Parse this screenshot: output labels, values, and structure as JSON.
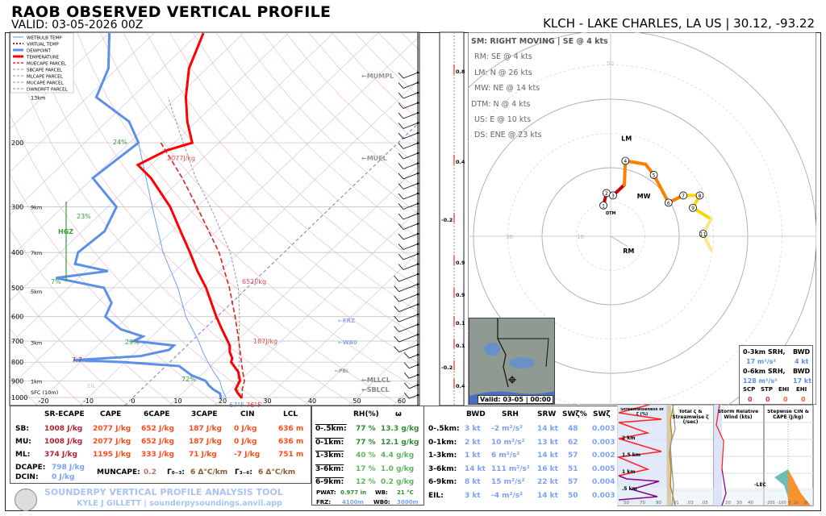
{
  "header": {
    "title": "RAOB OBSERVED VERTICAL PROFILE",
    "valid": "VALID: 03-05-2026 00Z",
    "location": "KLCH - LAKE CHARLES, LA US | 30.12, -93.22"
  },
  "legend": [
    {
      "label": "WETBULB TEMP",
      "color": "#6ea0f5",
      "style": "solid-thin"
    },
    {
      "label": "VIRTUAL TEMP",
      "color": "#b22030",
      "style": "dotted"
    },
    {
      "label": "DEWPOINT",
      "color": "#5b8fe8",
      "style": "solid-thick"
    },
    {
      "label": "TEMPERATURE",
      "color": "#ff0000",
      "style": "solid-thick"
    },
    {
      "label": "MUECAPE PARCEL",
      "color": "#ff0000",
      "style": "dashed"
    },
    {
      "label": "SBCAPE PARCEL",
      "color": "#aaaaaa",
      "style": "dashed"
    },
    {
      "label": "MLCAPE PARCEL",
      "color": "#aaaaaa",
      "style": "dashed"
    },
    {
      "label": "MUCAPE PARCEL",
      "color": "#aaaaaa",
      "style": "dashed"
    },
    {
      "label": "DWNDRFT PARCEL",
      "color": "#cc88cc",
      "style": "dashed"
    }
  ],
  "chart_data": [
    {
      "type": "line",
      "name": "skew-t",
      "pressure_ticks": [
        200,
        300,
        400,
        500,
        600,
        700,
        800,
        900,
        1000
      ],
      "temp_ticks": [
        -20,
        -10,
        0,
        10,
        20,
        30,
        40,
        50,
        60
      ],
      "ylim_hpa": [
        1050,
        100
      ],
      "yscale": "log",
      "grid": true,
      "height_labels": [
        {
          "p": 150,
          "t": "13km"
        },
        {
          "p": 300,
          "t": "9km"
        },
        {
          "p": 400,
          "t": "7km"
        },
        {
          "p": 510,
          "t": "5km"
        },
        {
          "p": 705,
          "t": "3km"
        },
        {
          "p": 900,
          "t": "1km"
        },
        {
          "p": 1002,
          "t": "SFC (10m)"
        }
      ],
      "temperature": {
        "p": [
          1005,
          975,
          950,
          925,
          900,
          850,
          800,
          780,
          750,
          720,
          700,
          650,
          600,
          550,
          500,
          450,
          400,
          350,
          300,
          250,
          230,
          210,
          200,
          175,
          150,
          125,
          100
        ],
        "t": [
          24.5,
          22.5,
          21,
          20.5,
          20,
          17.5,
          13.7,
          13,
          11,
          9.5,
          8,
          4,
          -0.2,
          -4.5,
          -9.2,
          -15,
          -21,
          -28,
          -36,
          -47,
          -53,
          -50,
          -46,
          -52,
          -58,
          -64,
          -69
        ]
      },
      "dewpoint": {
        "p": [
          1005,
          975,
          950,
          925,
          900,
          870,
          850,
          820,
          800,
          790,
          770,
          740,
          720,
          700,
          680,
          650,
          600,
          550,
          500,
          470,
          450,
          430,
          400,
          350,
          300,
          250,
          200,
          175,
          150,
          125,
          100
        ],
        "t": [
          19.8,
          18.5,
          16,
          14,
          12.3,
          8,
          6,
          3,
          -10,
          -22,
          -8,
          -3,
          -3,
          -13,
          -12,
          -18.6,
          -25,
          -26.8,
          -32,
          -45,
          -35,
          -44,
          -46,
          -45,
          -48,
          -60,
          -58,
          -65,
          -78,
          -82,
          -90
        ]
      },
      "wetbulb": {
        "p": [
          1005,
          950,
          900,
          850,
          800,
          750,
          700,
          600,
          500,
          400,
          300,
          200
        ],
        "t": [
          21,
          18,
          15.5,
          12,
          8.5,
          5,
          1.5,
          -7,
          -15.5,
          -27,
          -40,
          -58
        ]
      },
      "muecape_parcel": {
        "p": [
          1005,
          950,
          900,
          850,
          800,
          700,
          600,
          500,
          400,
          300,
          250,
          200
        ],
        "t": [
          24.5,
          22.5,
          21,
          18.5,
          16,
          10.5,
          4,
          -4,
          -14.5,
          -30,
          -40,
          -53
        ]
      },
      "grey_parcel": {
        "p": [
          1005,
          950,
          900,
          850,
          800,
          700,
          600,
          500,
          400,
          300,
          250,
          200,
          150
        ],
        "t": [
          24.5,
          21.5,
          19.5,
          17.5,
          15.5,
          10.5,
          5,
          -2,
          -12,
          -27,
          -37,
          -48,
          -62
        ]
      },
      "annotations": {
        "rh_labels": [
          {
            "p": 200,
            "t": "24%"
          },
          {
            "p": 300,
            "t": "23%"
          },
          {
            "p": 490,
            "t": "7%"
          },
          {
            "p": 700,
            "t": "29%"
          },
          {
            "p": 910,
            "t": "72%"
          }
        ],
        "hgz": "HGZ",
        "lapse": "7.7",
        "eil": "EIL",
        "cape_labels": [
          "2077J/kg",
          "652J/kg",
          "187J/kg"
        ],
        "sfc_t": "76°F",
        "sfc_td": "67°F",
        "levels": [
          "←MUMPL",
          "←MUEL",
          "←FRZ",
          "←WB0",
          "←PBL",
          "←MLLCL",
          "←SBLCL"
        ]
      },
      "omega_labels": [
        "0.8",
        "0.4",
        "-0.2",
        "0.9",
        "0.9",
        "0.1",
        "0.1",
        "-0.2",
        "0.4"
      ]
    },
    {
      "type": "hodograph",
      "units": "kt",
      "rings": [
        10,
        20,
        30,
        40,
        50,
        60
      ],
      "ring_labels": [
        "10",
        "30",
        "50"
      ],
      "trace_uv": [
        [
          -2.1,
          9
        ],
        [
          -1.2,
          12.6
        ],
        [
          0.7,
          11.9
        ],
        [
          4,
          15
        ],
        [
          4.3,
          22
        ],
        [
          10.2,
          21
        ],
        [
          12.6,
          17.9
        ],
        [
          16.9,
          9.8
        ],
        [
          21.2,
          11.9
        ],
        [
          26,
          11.9
        ],
        [
          24,
          8.3
        ],
        [
          29.3,
          5
        ],
        [
          27,
          0.7
        ],
        [
          29.3,
          -4
        ]
      ],
      "height_markers": [
        "1",
        "2",
        "3",
        "4",
        "5",
        "6",
        "7",
        "8",
        "9",
        "11"
      ],
      "vectors": {
        "LM": [
          4.5,
          27
        ],
        "MW": [
          10.5,
          12
        ],
        "RM": [
          5,
          -3
        ],
        "DTM": [
          0,
          -4
        ]
      }
    }
  ],
  "storm_motion": {
    "header": "SM: RIGHT MOVING | SE @ 4 kts",
    "items": [
      "RM: SE @ 4 kts",
      "LM: N @ 26 kts",
      "MW: NE @ 14 kts",
      "DTM: N @ 4 kts",
      "US: E @ 10 kts",
      "DS: ENE @ 23 kts"
    ]
  },
  "srh_box": {
    "l1": "0-3km SRH,",
    "l1b": "BWD",
    "v1": "17 m²/s²",
    "v1b": "4 kt",
    "l2": "0-6km SRH,",
    "l2b": "BWD",
    "v2": "128 m²/s²",
    "v2b": "17 kt",
    "h": [
      "SCP",
      "STP",
      "EHI",
      "EHI"
    ],
    "v": [
      "0",
      "0",
      "0",
      "0"
    ]
  },
  "map": {
    "valid": "Valid: 03-05 | 00:00"
  },
  "thermo": {
    "headers": [
      "SR-ECAPE",
      "CAPE",
      "6CAPE",
      "3CAPE",
      "CIN",
      "LCL"
    ],
    "rows": [
      {
        "label": "SB:",
        "v": [
          "1008 J/kg",
          "2077 J/kg",
          "652 J/kg",
          "187 J/kg",
          "0 J/kg",
          "636 m"
        ]
      },
      {
        "label": "MU:",
        "v": [
          "1008 J/kg",
          "2077 J/kg",
          "652 J/kg",
          "187 J/kg",
          "0 J/kg",
          "636 m"
        ]
      },
      {
        "label": "ML:",
        "v": [
          "374 J/kg",
          "1195 J/kg",
          "333 J/kg",
          "71 J/kg",
          "-7 J/kg",
          "751 m"
        ]
      }
    ],
    "dcape_l": "DCAPE:",
    "dcape": "798 J/kg",
    "dcin_l": "DCIN:",
    "dcin": "0 J/kg",
    "muncape_l": "MUNCAPE:",
    "muncape": "0.2",
    "g03_l": "Γ₀₋₃:",
    "g03": "6 Δ°C/km",
    "g36_l": "Γ₃₋₆:",
    "g36": "6 Δ°C/km"
  },
  "moist": {
    "headers": [
      "RH(%)",
      "ω"
    ],
    "rows": [
      {
        "l": "0-.5km:",
        "rh": "77 %",
        "w": "13.3 g/kg"
      },
      {
        "l": "0-1km:",
        "rh": "77 %",
        "w": "12.1 g/kg"
      },
      {
        "l": "1-3km:",
        "rh": "40 %",
        "w": "4.4 g/kg"
      },
      {
        "l": "3-6km:",
        "rh": "17 %",
        "w": "1.0 g/kg"
      },
      {
        "l": "6-9km:",
        "rh": "12 %",
        "w": "0.2 g/kg"
      }
    ],
    "pwat_l": "PWAT:",
    "pwat": "0.977 in",
    "wb_l": "WB:",
    "wb": "21 °C",
    "frz_l": "FRZ:",
    "frz": "4100m",
    "wb0_l": "WB0:",
    "wb0": "3000m"
  },
  "kin": {
    "headers": [
      "BWD",
      "SRH",
      "SRW",
      "SWζ%",
      "SWζ"
    ],
    "rows": [
      {
        "l": "0-.5km:",
        "v": [
          "3 kt",
          "-2 m²/s²",
          "14 kt",
          "48",
          "0.003"
        ]
      },
      {
        "l": "0-1km:",
        "v": [
          "2 kt",
          "10 m²/s²",
          "13 kt",
          "62",
          "0.003"
        ]
      },
      {
        "l": "1-3km:",
        "v": [
          "1 kt",
          "6 m²/s²",
          "14 kt",
          "57",
          "0.002"
        ]
      },
      {
        "l": "3-6km:",
        "v": [
          "14 kt",
          "111 m²/s²",
          "16 kt",
          "51",
          "0.005"
        ]
      },
      {
        "l": "6-9km:",
        "v": [
          "8 kt",
          "15 m²/s²",
          "22 kt",
          "57",
          "0.004"
        ]
      },
      {
        "l": "EIL:",
        "v": [
          "3 kt",
          "-4 m²/s²",
          "14 kt",
          "50",
          "0.003"
        ]
      }
    ]
  },
  "mini": {
    "p1_title": "Streamwiseness of ζ (%)",
    "p1_ticks": [
      "50",
      "70",
      "90"
    ],
    "heights": [
      "2 km",
      "1.5 km",
      "1 km",
      ".5 km"
    ],
    "p2_title": "Total ζ & Streamwise ζ (/sec)",
    "p2_ticks": [
      ".01",
      ".03",
      ".05"
    ],
    "p3_title": "Storm Relative Wind (kts)",
    "p3_ticks": [
      "20",
      "30",
      "40"
    ],
    "lec": "-LEC",
    "p4_title": "Stepwise CIN & CAPE (J/kg)",
    "p4_ticks": [
      "-200",
      "-100",
      "0",
      "1k",
      "2k"
    ]
  },
  "footer": {
    "title": "SOUNDERPY VERTICAL PROFILE ANALYSIS TOOL",
    "sub": "KYLE J GILLETT | sounderpysoundings.anvil.app",
    "logo": "SOUNDERPY"
  }
}
